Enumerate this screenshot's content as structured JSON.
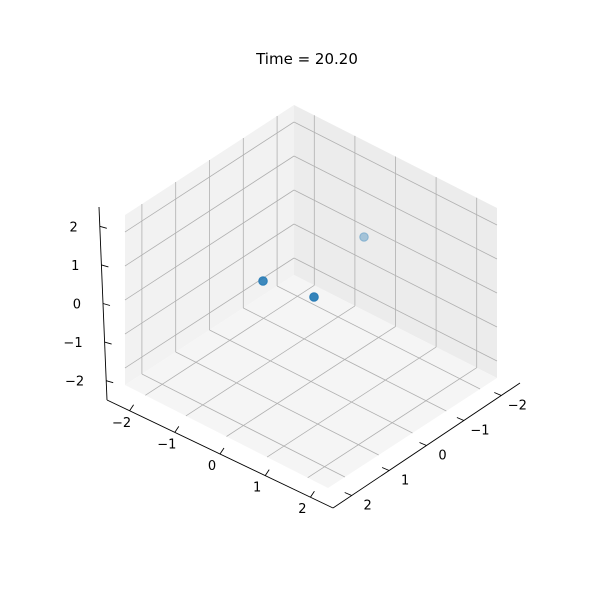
{
  "chart_data": {
    "type": "scatter",
    "projection": "3d",
    "title": "Time = 20.20",
    "xlabel": "",
    "ylabel": "",
    "zlabel": "",
    "grid": true,
    "xlim": [
      -2.5,
      2.5
    ],
    "ylim": [
      -2.5,
      2.5
    ],
    "zlim": [
      -2.5,
      2.5
    ],
    "x_ticks": [
      "−2",
      "−1",
      "0",
      "1",
      "2"
    ],
    "y_ticks": [
      "−2",
      "−1",
      "0",
      "1",
      "2"
    ],
    "z_ticks": [
      "−2",
      "−1",
      "0",
      "1",
      "2"
    ],
    "marker_color": "#1f77b4",
    "series": [
      {
        "points": [
          {
            "x": -1.0,
            "y": -2.5,
            "z": 0.2
          },
          {
            "x": 0.06,
            "y": -2.5,
            "z": 0.06
          },
          {
            "x": 0.05,
            "y": -1.48,
            "z": 0.94
          }
        ]
      }
    ]
  }
}
